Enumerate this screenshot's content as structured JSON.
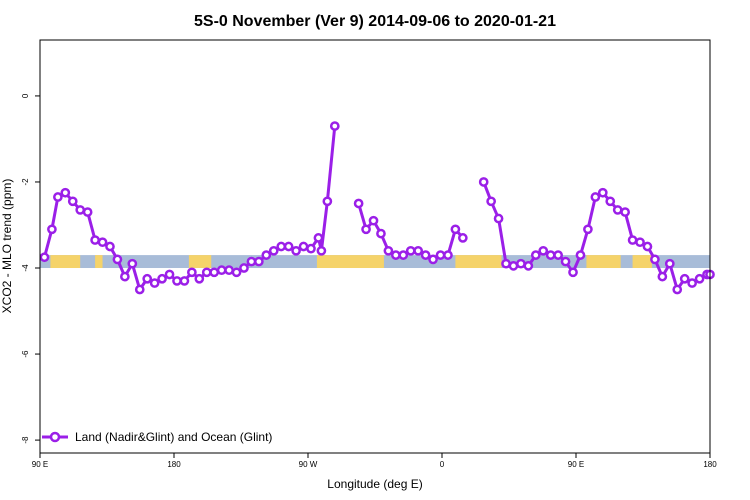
{
  "chart_data": {
    "type": "line",
    "title": "5S-0 November (Ver 9)   2014-09-06 to 2020-01-21",
    "xlabel": "Longitude (deg E)",
    "ylabel": "XCO2 - MLO trend (ppm)",
    "xlim": [
      90,
      540
    ],
    "ylim": [
      -8.3,
      1.3
    ],
    "x_ticks": [
      {
        "value": 90,
        "label": "90 E"
      },
      {
        "value": 180,
        "label": "180"
      },
      {
        "value": 270,
        "label": "90 W"
      },
      {
        "value": 360,
        "label": "0"
      },
      {
        "value": 450,
        "label": "90 E"
      },
      {
        "value": 540,
        "label": "180"
      }
    ],
    "y_ticks": [
      {
        "value": 0,
        "label": "0"
      },
      {
        "value": -2,
        "label": "-2"
      },
      {
        "value": -4,
        "label": "-4"
      },
      {
        "value": -6,
        "label": "-6"
      },
      {
        "value": -8,
        "label": "-8"
      }
    ],
    "surface_band": {
      "y_range": [
        -4.0,
        -3.7
      ],
      "ocean_color": "#a8bcd8",
      "land_color": "#f5d36a",
      "land_segments": [
        [
          97,
          117
        ],
        [
          127,
          132
        ],
        [
          190,
          205
        ],
        [
          276,
          321
        ],
        [
          369,
          400
        ],
        [
          457,
          480
        ],
        [
          488,
          501
        ]
      ]
    },
    "series": [
      {
        "name": "Land (Nadir&Glint) and Ocean (Glint)",
        "color": "#9b1fe8",
        "segments": [
          [
            [
              93,
              -3.75
            ],
            [
              98,
              -3.1
            ],
            [
              102,
              -2.35
            ],
            [
              107,
              -2.25
            ],
            [
              112,
              -2.45
            ],
            [
              117,
              -2.65
            ],
            [
              122,
              -2.7
            ],
            [
              127,
              -3.35
            ],
            [
              132,
              -3.4
            ],
            [
              137,
              -3.5
            ],
            [
              142,
              -3.8
            ],
            [
              147,
              -4.2
            ],
            [
              152,
              -3.9
            ],
            [
              157,
              -4.5
            ],
            [
              162,
              -4.25
            ],
            [
              167,
              -4.35
            ],
            [
              172,
              -4.25
            ],
            [
              177,
              -4.15
            ],
            [
              182,
              -4.3
            ],
            [
              187,
              -4.3
            ],
            [
              192,
              -4.1
            ],
            [
              197,
              -4.25
            ],
            [
              202,
              -4.1
            ],
            [
              207,
              -4.1
            ],
            [
              212,
              -4.05
            ],
            [
              217,
              -4.05
            ],
            [
              222,
              -4.1
            ],
            [
              227,
              -4.0
            ],
            [
              232,
              -3.85
            ],
            [
              237,
              -3.85
            ],
            [
              242,
              -3.7
            ],
            [
              247,
              -3.6
            ],
            [
              252,
              -3.5
            ],
            [
              257,
              -3.5
            ],
            [
              262,
              -3.6
            ],
            [
              267,
              -3.5
            ],
            [
              272,
              -3.55
            ],
            [
              277,
              -3.3
            ],
            [
              279,
              -3.6
            ],
            [
              283,
              -2.45
            ],
            [
              288,
              -0.7
            ]
          ],
          [
            [
              304,
              -2.5
            ],
            [
              309,
              -3.1
            ],
            [
              314,
              -2.9
            ],
            [
              319,
              -3.2
            ],
            [
              324,
              -3.6
            ],
            [
              329,
              -3.7
            ],
            [
              334,
              -3.7
            ],
            [
              339,
              -3.6
            ],
            [
              344,
              -3.6
            ],
            [
              349,
              -3.7
            ],
            [
              354,
              -3.8
            ],
            [
              359,
              -3.7
            ],
            [
              364,
              -3.7
            ],
            [
              369,
              -3.1
            ],
            [
              374,
              -3.3
            ]
          ],
          [
            [
              388,
              -2.0
            ],
            [
              393,
              -2.45
            ],
            [
              398,
              -2.85
            ],
            [
              403,
              -3.9
            ],
            [
              408,
              -3.95
            ],
            [
              413,
              -3.9
            ],
            [
              418,
              -3.95
            ],
            [
              423,
              -3.7
            ],
            [
              428,
              -3.6
            ],
            [
              433,
              -3.7
            ],
            [
              438,
              -3.7
            ],
            [
              443,
              -3.85
            ],
            [
              448,
              -4.1
            ],
            [
              453,
              -3.7
            ],
            [
              458,
              -3.1
            ],
            [
              463,
              -2.35
            ],
            [
              468,
              -2.25
            ],
            [
              473,
              -2.45
            ],
            [
              478,
              -2.65
            ],
            [
              483,
              -2.7
            ],
            [
              488,
              -3.35
            ],
            [
              493,
              -3.4
            ],
            [
              498,
              -3.5
            ],
            [
              503,
              -3.8
            ],
            [
              508,
              -4.2
            ],
            [
              513,
              -3.9
            ],
            [
              518,
              -4.5
            ],
            [
              523,
              -4.25
            ],
            [
              528,
              -4.35
            ],
            [
              533,
              -4.25
            ],
            [
              538,
              -4.15
            ],
            [
              540,
              -4.15
            ]
          ]
        ]
      }
    ],
    "legend": {
      "position": "bottom-left",
      "label": "Land (Nadir&Glint) and Ocean (Glint)"
    }
  }
}
